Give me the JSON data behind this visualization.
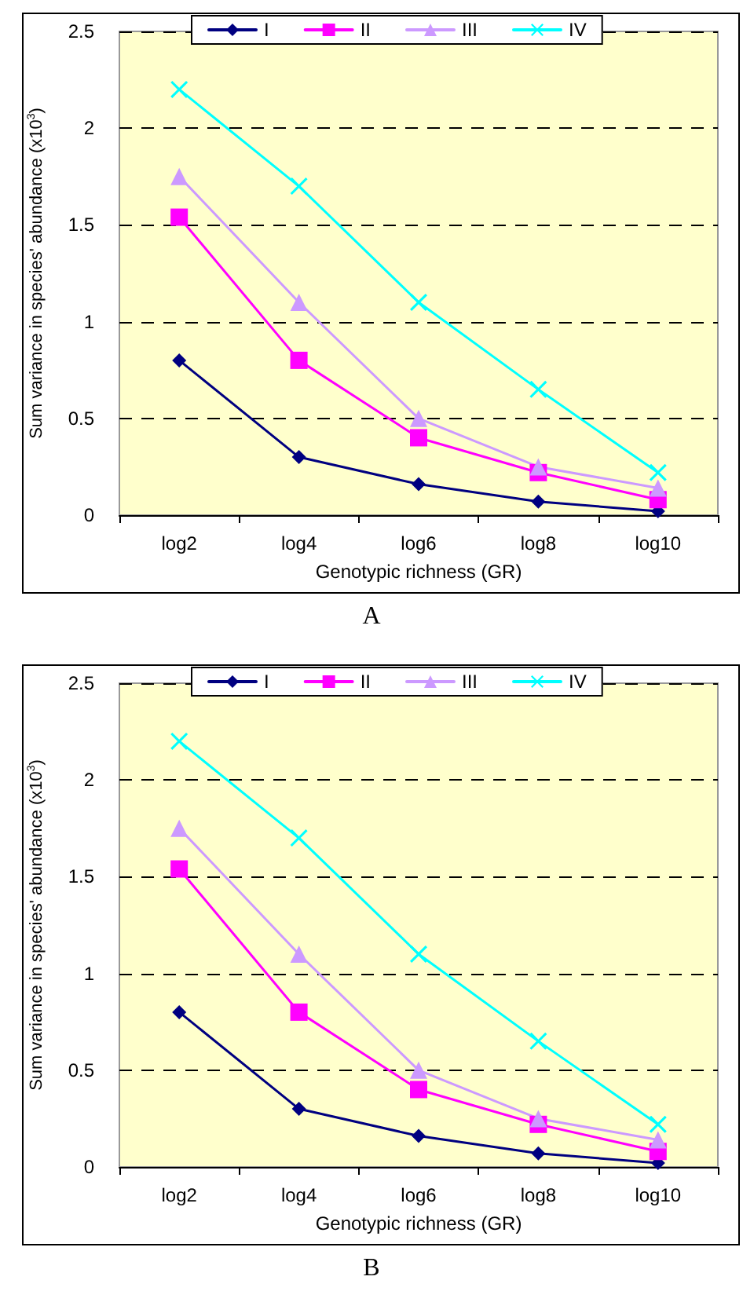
{
  "chart_data": [
    {
      "type": "line",
      "annotations": [
        "A"
      ],
      "xlabel": "Genotypic richness (GR)",
      "ylabel": "Sum variance in species' abundance (x10$^{3}$)",
      "categories": [
        "log2",
        "log4",
        "log6",
        "log8",
        "log10"
      ],
      "ylim": [
        0,
        2.5
      ],
      "yticks": [
        0,
        0.5,
        1,
        1.5,
        2,
        2.5
      ],
      "grid": "y",
      "legend": "top",
      "line_style": "solid",
      "series": [
        {
          "name": "I",
          "color": "#000080",
          "marker": "diamond",
          "values": [
            0.8,
            0.3,
            0.16,
            0.07,
            0.02
          ]
        },
        {
          "name": "II",
          "color": "#ff00ff",
          "marker": "square",
          "values": [
            1.54,
            0.8,
            0.4,
            0.22,
            0.08
          ]
        },
        {
          "name": "III",
          "color": "#cc99ff",
          "marker": "triangle",
          "values": [
            1.75,
            1.1,
            0.5,
            0.25,
            0.14
          ]
        },
        {
          "name": "IV",
          "color": "#00ffff",
          "marker": "cross",
          "values": [
            2.2,
            1.7,
            1.1,
            0.65,
            0.22
          ]
        }
      ]
    },
    {
      "type": "line",
      "annotations": [
        "B"
      ],
      "xlabel": "Genotypic richness (GR)",
      "ylabel": "Sum variance in species' abundance (x10$^{3}$)",
      "categories": [
        "log2",
        "log4",
        "log6",
        "log8",
        "log10"
      ],
      "ylim": [
        0,
        2.5
      ],
      "yticks": [
        0,
        0.5,
        1,
        1.5,
        2,
        2.5
      ],
      "grid": "y",
      "legend": "top",
      "line_style": "solid",
      "series": [
        {
          "name": "I",
          "color": "#000080",
          "marker": "diamond",
          "values": [
            0.8,
            0.3,
            0.16,
            0.07,
            0.02
          ]
        },
        {
          "name": "II",
          "color": "#ff00ff",
          "marker": "square",
          "values": [
            1.54,
            0.8,
            0.4,
            0.22,
            0.08
          ]
        },
        {
          "name": "III",
          "color": "#cc99ff",
          "marker": "triangle",
          "values": [
            1.75,
            1.1,
            0.5,
            0.25,
            0.14
          ]
        },
        {
          "name": "IV",
          "color": "#00ffff",
          "marker": "cross",
          "values": [
            2.2,
            1.7,
            1.1,
            0.65,
            0.22
          ]
        }
      ]
    }
  ]
}
